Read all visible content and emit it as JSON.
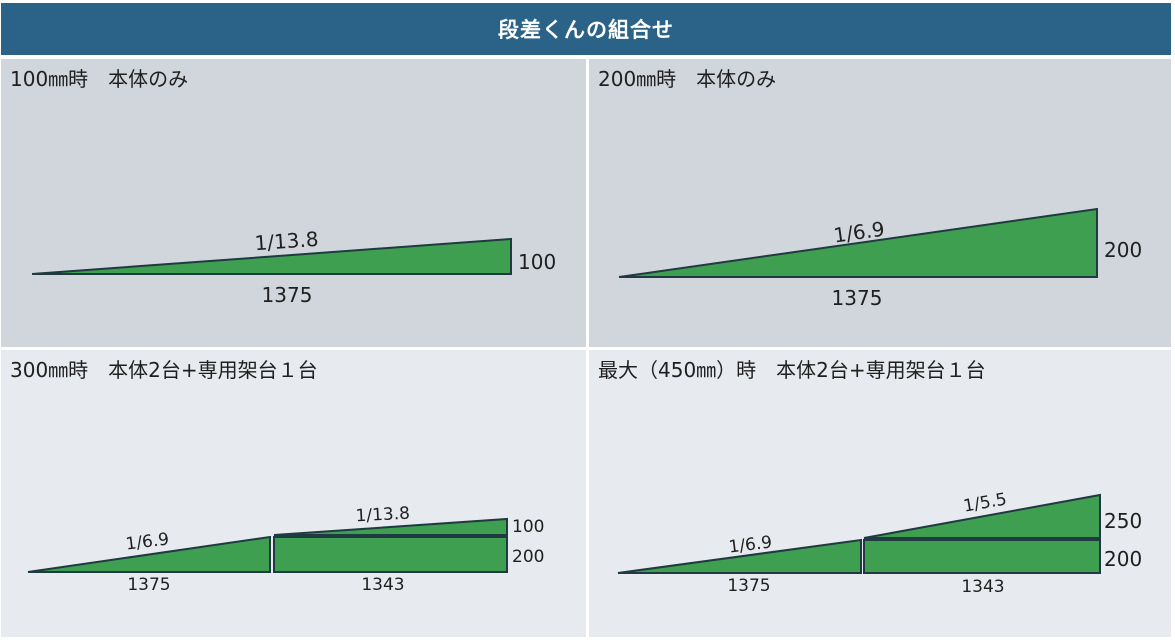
{
  "header": {
    "title": "段差くんの組合せ"
  },
  "colors": {
    "header_bg": "#2b6287",
    "ramp_fill": "#3f9f50",
    "ramp_stroke": "#1f3a40"
  },
  "panels": [
    {
      "title": "100㎜時　本体のみ",
      "slope": "1/13.8",
      "length": "1375",
      "height": "100"
    },
    {
      "title": "200㎜時　本体のみ",
      "slope": "1/6.9",
      "length": "1375",
      "height": "200"
    },
    {
      "title": "300㎜時　本体2台+専用架台１台",
      "slope_lower": "1/6.9",
      "slope_upper": "1/13.8",
      "length_lower": "1375",
      "length_upper": "1343",
      "height_upper": "100",
      "height_lower": "200"
    },
    {
      "title": "最大（450㎜）時　本体2台+専用架台１台",
      "slope_lower": "1/6.9",
      "slope_upper": "1/5.5",
      "length_lower": "1375",
      "length_upper": "1343",
      "height_upper": "250",
      "height_lower": "200"
    }
  ]
}
